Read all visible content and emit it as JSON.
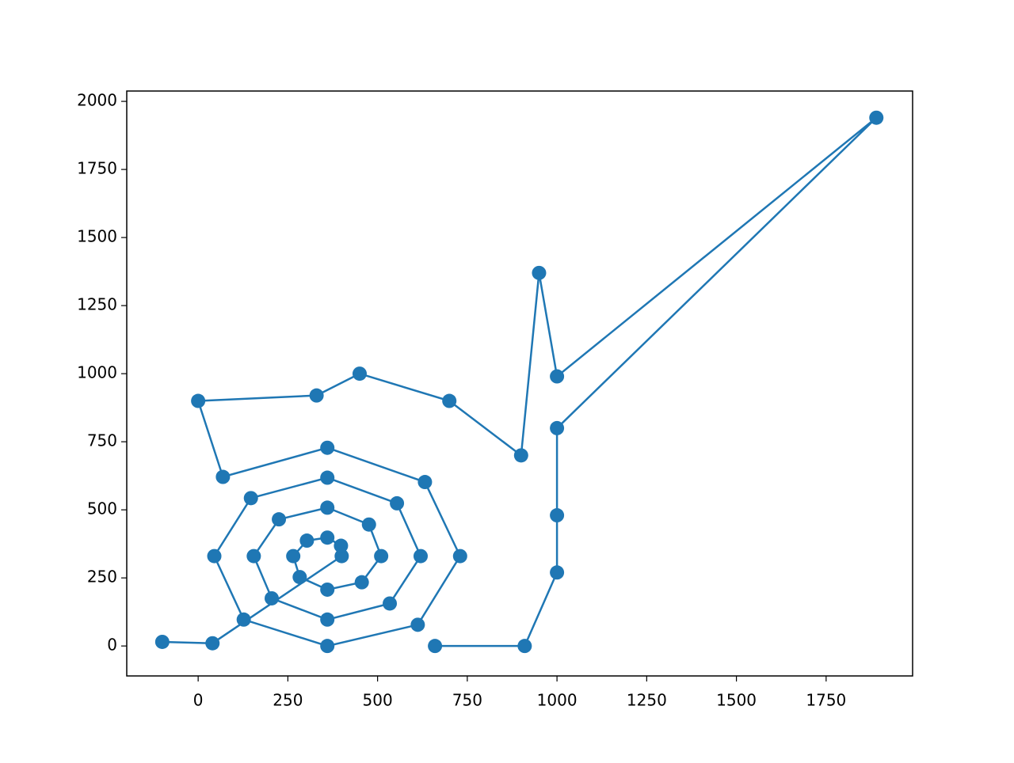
{
  "chart_data": {
    "type": "line",
    "xlim": [
      -199,
      1991
    ],
    "ylim": [
      -110,
      2038
    ],
    "xticks": [
      0,
      250,
      500,
      750,
      1000,
      1250,
      1500,
      1750
    ],
    "yticks": [
      0,
      250,
      500,
      750,
      1000,
      1250,
      1500,
      1750,
      2000
    ],
    "grid": false,
    "series": [
      {
        "color": "#1f77b4",
        "x": [
          -100,
          40,
          400,
          398,
          360,
          303,
          265,
          283,
          360,
          456,
          510,
          476,
          360,
          225,
          155,
          205,
          360,
          534,
          620,
          554,
          360,
          147,
          45,
          127,
          360,
          612,
          730,
          632,
          360,
          69,
          0,
          330,
          450,
          700,
          900,
          950,
          1000,
          1890,
          1000,
          1000,
          1000,
          910,
          660
        ],
        "y": [
          15,
          10,
          330,
          368,
          398,
          387,
          330,
          253,
          207,
          234,
          330,
          446,
          508,
          465,
          330,
          175,
          97,
          156,
          330,
          524,
          618,
          543,
          330,
          97,
          0,
          78,
          330,
          602,
          728,
          621,
          900,
          920,
          1000,
          900,
          700,
          1370,
          990,
          1940,
          800,
          480,
          270,
          0,
          0
        ]
      }
    ]
  }
}
